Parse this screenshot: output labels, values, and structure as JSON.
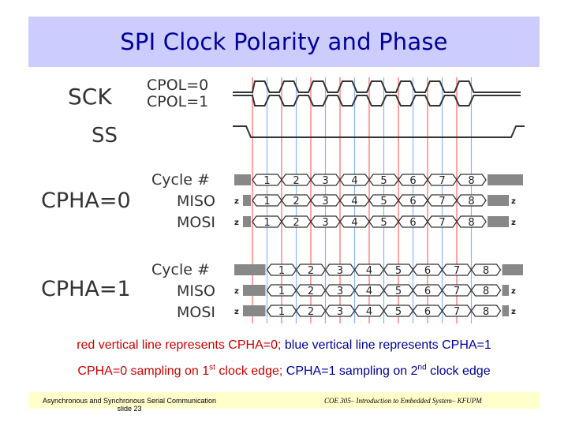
{
  "title": "SPI Clock Polarity and Phase",
  "labels": {
    "sck": "SCK",
    "ss": "SS",
    "cpol0": "CPOL=0",
    "cpol1": "CPOL=1",
    "cpha0": "CPHA=0",
    "cpha1": "CPHA=1",
    "cycle": "Cycle #",
    "miso": "MISO",
    "mosi": "MOSI",
    "z": "z"
  },
  "cycles": [
    "1",
    "2",
    "3",
    "4",
    "5",
    "6",
    "7",
    "8"
  ],
  "colors": {
    "title_bg": "#ccccff",
    "title_text": "#000099",
    "red_line": "#ff6666",
    "blue_line": "#8ab4ff",
    "footer_bg": "#ffffcc"
  },
  "caption": {
    "line1_red": "red vertical line represents CPHA=0;",
    "line1_blue": " blue vertical line represents CPHA=1",
    "line2_red_a": "CPHA=0 sampling on 1",
    "line2_red_sup": "st",
    "line2_red_b": " clock edge;",
    "line2_blue_a": " CPHA=1 sampling on 2",
    "line2_blue_sup": "nd",
    "line2_blue_b": " clock edge"
  },
  "footer": {
    "left_line1": "Asynchronous and Synchronous Serial Communication",
    "left_line2": "slide 23",
    "right": "COE 305– Introduction to Embedded System– KFUPM"
  }
}
